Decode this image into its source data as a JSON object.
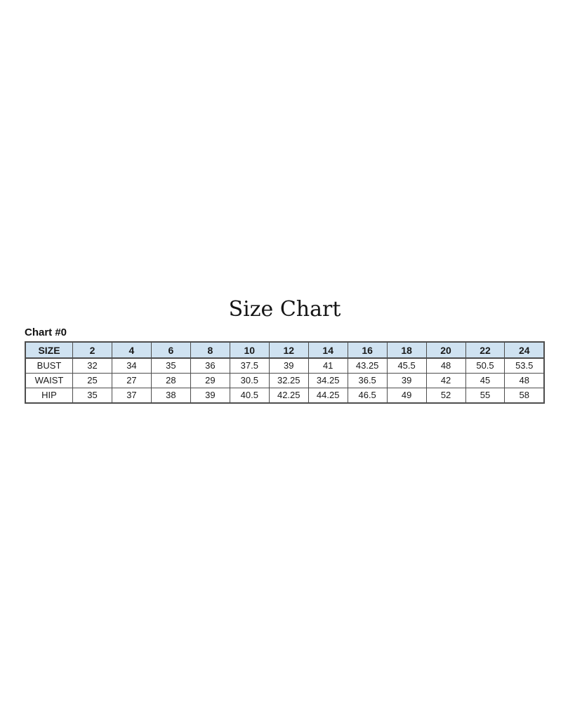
{
  "page": {
    "title": "Size Chart",
    "chart_label": "Chart #0"
  },
  "chart_data": {
    "type": "table",
    "title": "Size Chart",
    "subtitle": "Chart #0",
    "columns": [
      "SIZE",
      "2",
      "4",
      "6",
      "8",
      "10",
      "12",
      "14",
      "16",
      "18",
      "20",
      "22",
      "24"
    ],
    "rows": [
      {
        "label": "BUST",
        "values": [
          "32",
          "34",
          "35",
          "36",
          "37.5",
          "39",
          "41",
          "43.25",
          "45.5",
          "48",
          "50.5",
          "53.5"
        ]
      },
      {
        "label": "WAIST",
        "values": [
          "25",
          "27",
          "28",
          "29",
          "30.5",
          "32.25",
          "34.25",
          "36.5",
          "39",
          "42",
          "45",
          "48"
        ]
      },
      {
        "label": "HIP",
        "values": [
          "35",
          "37",
          "38",
          "39",
          "40.5",
          "42.25",
          "44.25",
          "46.5",
          "49",
          "52",
          "55",
          "58"
        ]
      }
    ],
    "layout": {
      "header_bg": "#cfe2f1",
      "border_color": "#4d4d4d",
      "text_color": "#1a1a1a",
      "body_bg": "#ffffff"
    }
  }
}
